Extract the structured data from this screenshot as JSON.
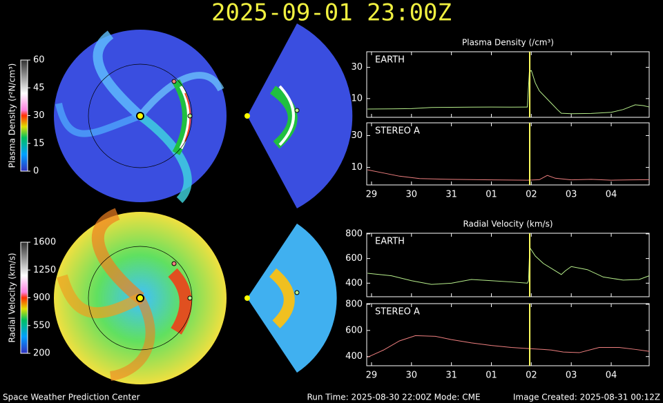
{
  "title": "2025-09-01 23:00Z",
  "footer": {
    "left": "Space Weather Prediction Center",
    "center": "Run Time: 2025-08-30 22:00Z  Mode: CME",
    "right": "Image Created: 2025-08-31 00:12Z"
  },
  "colorbars": [
    {
      "label": "Plasma Density (r²N/cm³)",
      "lim": [
        0,
        60
      ],
      "ticks": [
        0,
        15,
        30,
        45,
        60
      ]
    },
    {
      "label": "Radial Velocity (km/s)",
      "lim": [
        200,
        1600
      ],
      "ticks": [
        200,
        550,
        900,
        1250,
        1600
      ]
    }
  ],
  "chart_data": [
    {
      "type": "line",
      "title": "Plasma Density (/cm³)",
      "x": [
        -0.1,
        0.5,
        1,
        1.5,
        2,
        2.5,
        3,
        3.5,
        3.9,
        3.95,
        4.0,
        4.1,
        4.2,
        4.35,
        4.5,
        4.65,
        4.75,
        5,
        5.5,
        6,
        6.3,
        6.6,
        6.8,
        6.95
      ],
      "series": [
        {
          "name": "EARTH",
          "color": "#b8f08c",
          "values": [
            3.3,
            3.4,
            3.6,
            4.3,
            4.4,
            4.5,
            4.6,
            4.5,
            4.6,
            27,
            28,
            20,
            15,
            11,
            7,
            3,
            0.6,
            0.3,
            0.5,
            1.2,
            3,
            6,
            5.5,
            4.6
          ]
        }
      ],
      "xlim": [
        -0.12,
        6.95
      ],
      "xticks": [
        0,
        1,
        2,
        3,
        4,
        5,
        6
      ],
      "ylim": [
        -2,
        40
      ],
      "yticks": [
        10,
        30
      ],
      "now": 3.96
    },
    {
      "type": "line",
      "x": [
        -0.1,
        0.3,
        0.7,
        1.2,
        2,
        3,
        3.9,
        4.2,
        4.4,
        4.6,
        5,
        5.5,
        6,
        6.5,
        6.95
      ],
      "series": [
        {
          "name": "STEREO A",
          "color": "#f08080",
          "values": [
            8.5,
            6.5,
            4.5,
            3,
            2.5,
            2.2,
            2,
            2.3,
            5,
            3.2,
            2.2,
            2.5,
            2,
            2.2,
            2.3
          ]
        }
      ],
      "xlim": [
        -0.12,
        6.95
      ],
      "xticks": [
        {
          "value": 0,
          "label": "29"
        },
        {
          "value": 1,
          "label": "30"
        },
        {
          "value": 2,
          "label": "31"
        },
        {
          "value": 3,
          "label": "01"
        },
        {
          "value": 4,
          "label": "02"
        },
        {
          "value": 5,
          "label": "03"
        },
        {
          "value": 6,
          "label": "04"
        }
      ],
      "ylim": [
        -1,
        38
      ],
      "yticks": [
        10,
        30
      ],
      "now": 3.96
    },
    {
      "type": "line",
      "title": "Radial Velocity (km/s)",
      "x": [
        -0.1,
        0.5,
        1,
        1.5,
        2,
        2.5,
        3,
        3.5,
        3.9,
        3.93,
        3.96,
        4.1,
        4.3,
        4.6,
        4.75,
        4.85,
        5,
        5.4,
        5.8,
        6.3,
        6.7,
        6.95
      ],
      "series": [
        {
          "name": "EARTH",
          "color": "#b8f08c",
          "values": [
            480,
            460,
            420,
            390,
            400,
            430,
            420,
            410,
            400,
            420,
            690,
            620,
            560,
            500,
            470,
            500,
            535,
            510,
            450,
            425,
            430,
            460
          ]
        }
      ],
      "xlim": [
        -0.12,
        6.95
      ],
      "xticks": [
        0,
        1,
        2,
        3,
        4,
        5,
        6
      ],
      "ylim": [
        290,
        805
      ],
      "yticks": [
        400,
        600,
        800
      ],
      "now": 3.96
    },
    {
      "type": "line",
      "x": [
        -0.1,
        0.3,
        0.7,
        1.1,
        1.6,
        2,
        2.5,
        3,
        3.5,
        4,
        4.3,
        4.5,
        4.8,
        5.2,
        5.7,
        6.2,
        6.6,
        6.95
      ],
      "series": [
        {
          "name": "STEREO A",
          "color": "#f08080",
          "values": [
            395,
            450,
            520,
            560,
            555,
            530,
            505,
            485,
            470,
            460,
            455,
            450,
            435,
            430,
            470,
            470,
            455,
            440
          ]
        }
      ],
      "xlim": [
        -0.12,
        6.95
      ],
      "xticks": [
        {
          "value": 0,
          "label": "29"
        },
        {
          "value": 1,
          "label": "30"
        },
        {
          "value": 2,
          "label": "31"
        },
        {
          "value": 3,
          "label": "01"
        },
        {
          "value": 4,
          "label": "02"
        },
        {
          "value": 5,
          "label": "03"
        },
        {
          "value": 6,
          "label": "04"
        }
      ],
      "ylim": [
        330,
        805
      ],
      "yticks": [
        400,
        600,
        800
      ],
      "now": 3.96
    }
  ]
}
